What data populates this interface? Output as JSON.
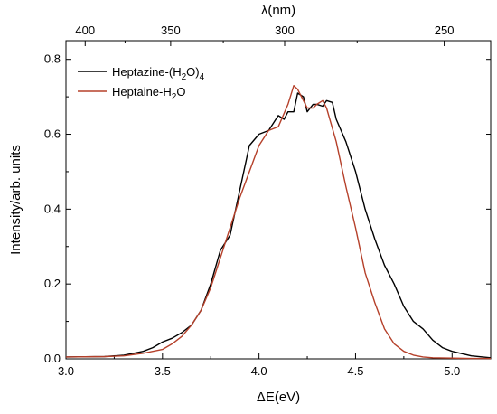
{
  "chart_data": {
    "type": "line",
    "xlabel": "ΔE(eV)",
    "ylabel": "Intensity/arb. units",
    "top_xlabel": "λ(nm)",
    "xlim": [
      3.0,
      5.2
    ],
    "ylim": [
      0.0,
      0.85
    ],
    "x_ticks": [
      "3.0",
      "3.5",
      "4.0",
      "4.5",
      "5.0"
    ],
    "y_ticks": [
      "0.0",
      "0.2",
      "0.4",
      "0.6",
      "0.8"
    ],
    "top_ticks": [
      "400",
      "350",
      "300",
      "250"
    ],
    "grid": false,
    "legend_position": "top-left",
    "series": [
      {
        "name": "Heptazine-(H2O)4",
        "legend_main": "Heptazine-(H",
        "legend_sub1": "2",
        "legend_mid": "O)",
        "legend_sub2": "4",
        "color": "#000000",
        "x": [
          3.0,
          3.2,
          3.3,
          3.4,
          3.45,
          3.5,
          3.55,
          3.6,
          3.65,
          3.7,
          3.75,
          3.8,
          3.85,
          3.9,
          3.95,
          4.0,
          4.05,
          4.1,
          4.13,
          4.15,
          4.18,
          4.2,
          4.23,
          4.25,
          4.28,
          4.3,
          4.33,
          4.35,
          4.38,
          4.4,
          4.45,
          4.5,
          4.55,
          4.6,
          4.65,
          4.7,
          4.75,
          4.8,
          4.85,
          4.9,
          4.95,
          5.0,
          5.1,
          5.2
        ],
        "y": [
          0.005,
          0.006,
          0.01,
          0.02,
          0.03,
          0.045,
          0.055,
          0.07,
          0.09,
          0.13,
          0.2,
          0.29,
          0.33,
          0.45,
          0.57,
          0.6,
          0.61,
          0.65,
          0.64,
          0.66,
          0.66,
          0.71,
          0.7,
          0.66,
          0.68,
          0.68,
          0.675,
          0.69,
          0.685,
          0.64,
          0.58,
          0.5,
          0.4,
          0.32,
          0.25,
          0.2,
          0.14,
          0.1,
          0.08,
          0.05,
          0.03,
          0.02,
          0.008,
          0.003
        ]
      },
      {
        "name": "Heptaine-H2O",
        "legend_main": "Heptaine-H",
        "legend_sub1": "2",
        "legend_mid": "O",
        "legend_sub2": "",
        "color": "#b5402a",
        "x": [
          3.0,
          3.2,
          3.3,
          3.4,
          3.5,
          3.55,
          3.6,
          3.65,
          3.7,
          3.75,
          3.8,
          3.85,
          3.9,
          3.95,
          4.0,
          4.05,
          4.1,
          4.15,
          4.18,
          4.2,
          4.23,
          4.25,
          4.28,
          4.3,
          4.33,
          4.35,
          4.4,
          4.45,
          4.5,
          4.55,
          4.6,
          4.65,
          4.7,
          4.75,
          4.8,
          4.85,
          4.9,
          5.0,
          5.1,
          5.2
        ],
        "y": [
          0.005,
          0.006,
          0.008,
          0.015,
          0.025,
          0.04,
          0.06,
          0.09,
          0.13,
          0.19,
          0.27,
          0.35,
          0.43,
          0.5,
          0.57,
          0.61,
          0.62,
          0.68,
          0.73,
          0.72,
          0.69,
          0.67,
          0.67,
          0.68,
          0.69,
          0.67,
          0.58,
          0.46,
          0.35,
          0.23,
          0.15,
          0.08,
          0.04,
          0.02,
          0.01,
          0.005,
          0.003,
          0.002,
          0.001,
          0.001
        ]
      }
    ]
  }
}
